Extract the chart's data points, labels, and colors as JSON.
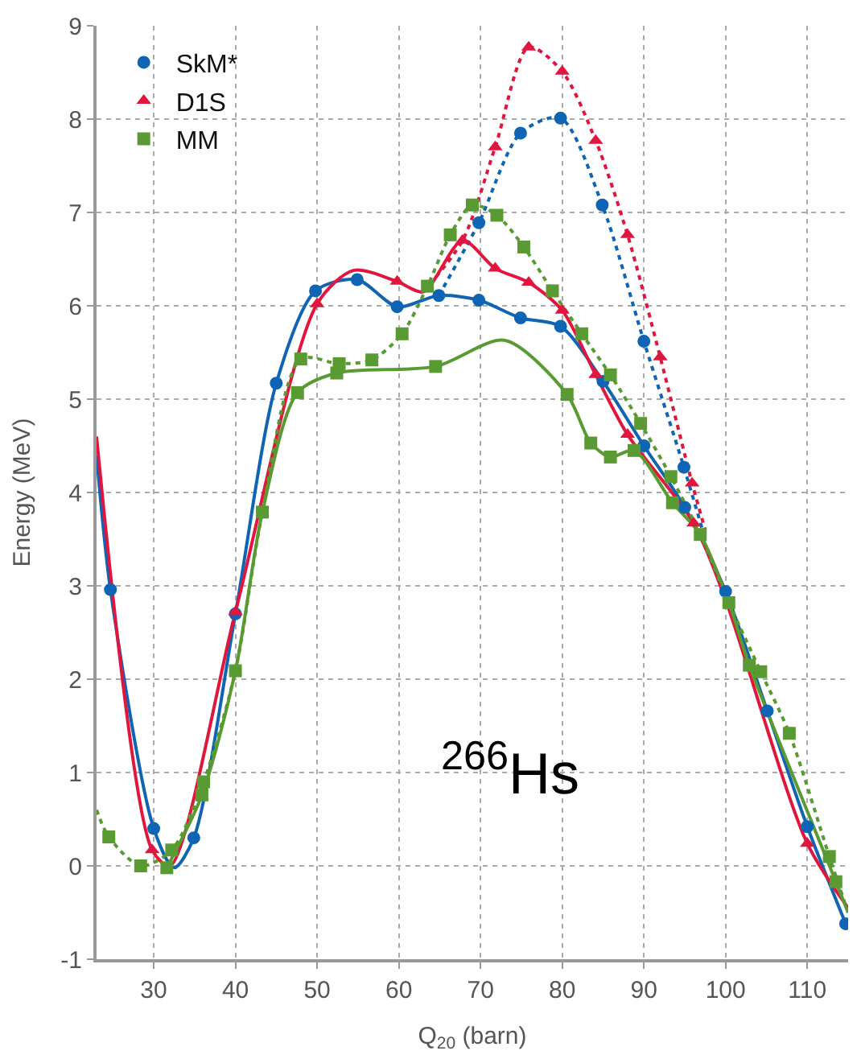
{
  "chart_data": {
    "type": "scatter",
    "xlabel": "Q$_{20}$ (barn)",
    "ylabel": "Energy (MeV)",
    "xlim": [
      23,
      115
    ],
    "ylim": [
      -1,
      9
    ],
    "xticks": [
      30,
      40,
      50,
      60,
      70,
      80,
      90,
      100,
      110
    ],
    "yticks": [
      -1,
      0,
      1,
      2,
      3,
      4,
      5,
      6,
      7,
      8,
      9
    ],
    "grid": true,
    "legend": "top left",
    "annotations": [
      "$^{266}$Hs"
    ],
    "series": [
      {
        "type": "line",
        "color": "#0f64b4",
        "line_style": "solid",
        "marker": "none",
        "x": [
          23,
          24.7,
          30,
          32.5,
          34.9,
          40,
          45,
          49.8,
          54.9,
          59.8,
          64.9,
          69.8,
          74.9,
          79.8,
          85,
          90,
          95,
          100,
          105.1,
          110,
          114.7
        ],
        "values": [
          4.4,
          2.96,
          0.4,
          -0.02,
          0.3,
          2.7,
          5.17,
          6.16,
          6.28,
          5.99,
          6.11,
          6.06,
          5.87,
          5.78,
          5.19,
          4.5,
          3.84,
          2.94,
          1.66,
          0.42,
          -0.62
        ]
      },
      {
        "type": "line",
        "color": "#0f64b4",
        "line_style": "dotted",
        "marker": "none",
        "x": [
          64.9,
          69.8,
          74.9,
          79.8,
          84.9,
          90,
          94.9,
          97.5
        ],
        "values": [
          6.11,
          6.89,
          7.85,
          8.01,
          7.08,
          5.62,
          4.27,
          3.5
        ]
      },
      {
        "type": "line",
        "color": "#e0163f",
        "line_style": "solid",
        "marker": "none",
        "x": [
          23,
          29.8,
          32,
          40,
          50,
          54.5,
          59.8,
          63,
          67.8,
          71.8,
          75.9,
          80,
          84.1,
          88,
          96.1,
          100,
          110,
          115
        ],
        "values": [
          4.6,
          0.17,
          0.0,
          2.72,
          6.02,
          6.38,
          6.26,
          6.15,
          6.7,
          6.4,
          6.25,
          5.95,
          5.26,
          4.62,
          3.67,
          2.85,
          0.24,
          -0.45
        ]
      },
      {
        "type": "line",
        "color": "#e0163f",
        "line_style": "dotted",
        "marker": "none",
        "x": [
          63,
          67.8,
          71.8,
          75.9,
          80,
          84.1,
          88,
          92,
          95.9,
          97.5
        ],
        "values": [
          6.15,
          6.7,
          7.7,
          8.77,
          8.51,
          7.77,
          6.76,
          5.45,
          4.1,
          3.6
        ]
      },
      {
        "type": "line",
        "color": "#5a9a32",
        "line_style": "solid",
        "marker": "none",
        "x": [
          31.6,
          35.9,
          40,
          43.3,
          47.6,
          52.4,
          64.5,
          73,
          80.6,
          83.5,
          85.9,
          88.8,
          93.5,
          96.9,
          100.4,
          102.9,
          113.5,
          115
        ],
        "values": [
          -0.02,
          0.76,
          2.09,
          3.79,
          5.07,
          5.28,
          5.35,
          5.63,
          5.05,
          4.53,
          4.38,
          4.45,
          3.89,
          3.55,
          2.82,
          2.15,
          -0.17,
          -0.5
        ]
      },
      {
        "type": "line",
        "color": "#5a9a32",
        "line_style": "dotted",
        "marker": "none",
        "x": [
          23,
          24.5,
          28.4,
          32.2,
          36.1,
          40,
          43.3,
          48,
          52.7,
          56.7,
          60.4,
          63.5,
          66.3,
          69,
          72,
          75.3,
          78.8,
          82.4,
          85.9,
          89.6,
          93.3,
          96.9,
          100.4,
          104.3,
          107.8,
          112.7,
          115
        ],
        "values": [
          0.6,
          0.31,
          0.0,
          0.17,
          0.9,
          2.09,
          3.79,
          5.43,
          5.38,
          5.42,
          5.7,
          6.21,
          6.76,
          7.08,
          6.97,
          6.63,
          6.16,
          5.7,
          5.26,
          4.74,
          4.17,
          3.55,
          2.82,
          2.08,
          1.42,
          0.1,
          -0.5
        ]
      },
      {
        "name": "SkM*",
        "color": "#0f64b4",
        "marker": "circle",
        "x": [
          24.7,
          30,
          34.9,
          40,
          45,
          49.8,
          54.9,
          59.8,
          64.9,
          69.8,
          74.9,
          79.8,
          85,
          90,
          95,
          100,
          105.1,
          110,
          114.7,
          69.8,
          74.9,
          79.8,
          84.9,
          90,
          94.9
        ],
        "values": [
          2.96,
          0.4,
          0.3,
          2.7,
          5.17,
          6.16,
          6.28,
          5.99,
          6.11,
          6.06,
          5.87,
          5.78,
          5.19,
          4.5,
          3.84,
          2.94,
          1.66,
          0.42,
          -0.62,
          6.89,
          7.85,
          8.01,
          7.08,
          5.62,
          4.27
        ]
      },
      {
        "name": "D1S",
        "color": "#e0163f",
        "marker": "triangle",
        "x": [
          29.8,
          40,
          50,
          59.8,
          67.8,
          71.8,
          75.9,
          80,
          84.1,
          88,
          96.1,
          110,
          71.8,
          75.9,
          80,
          84.1,
          88,
          92,
          95.9
        ],
        "values": [
          0.17,
          2.72,
          6.02,
          6.26,
          6.7,
          6.4,
          6.25,
          5.95,
          5.26,
          4.62,
          3.67,
          0.24,
          7.7,
          8.77,
          8.51,
          7.77,
          6.76,
          5.45,
          4.1
        ]
      },
      {
        "name": "MM",
        "color": "#5a9a32",
        "marker": "square",
        "x": [
          24.5,
          28.4,
          31.6,
          32.2,
          35.9,
          36.1,
          40,
          43.3,
          47.6,
          48,
          52.4,
          52.7,
          56.7,
          60.4,
          63.5,
          64.5,
          66.3,
          69,
          72,
          75.3,
          78.8,
          80.6,
          82.4,
          83.5,
          85.9,
          85.9,
          88.8,
          89.6,
          93.3,
          93.5,
          96.9,
          100.4,
          102.9,
          104.3,
          107.8,
          112.7,
          113.5
        ],
        "values": [
          0.31,
          0.0,
          -0.02,
          0.17,
          0.76,
          0.9,
          2.09,
          3.79,
          5.07,
          5.43,
          5.28,
          5.38,
          5.42,
          5.7,
          6.21,
          5.35,
          6.76,
          7.08,
          6.97,
          6.63,
          6.16,
          5.05,
          5.7,
          4.53,
          5.26,
          4.38,
          4.45,
          4.74,
          4.17,
          3.89,
          3.55,
          2.82,
          2.15,
          2.08,
          1.42,
          0.1,
          -0.17
        ]
      }
    ]
  }
}
